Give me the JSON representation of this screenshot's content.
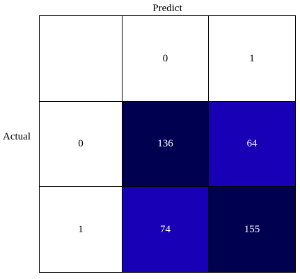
{
  "chart_data": {
    "type": "heatmap",
    "title": "",
    "xlabel": "Predict",
    "ylabel": "Actual",
    "x_categories": [
      "0",
      "1"
    ],
    "y_categories": [
      "0",
      "1"
    ],
    "values": [
      [
        136,
        64
      ],
      [
        74,
        155
      ]
    ],
    "colors": {
      "header_bg": "#ffffff",
      "header_text": "#000000",
      "cell_text": "#ffffff",
      "cell_bg": [
        [
          "#000050",
          "#1800b6"
        ],
        [
          "#1800b6",
          "#000050"
        ]
      ]
    }
  }
}
